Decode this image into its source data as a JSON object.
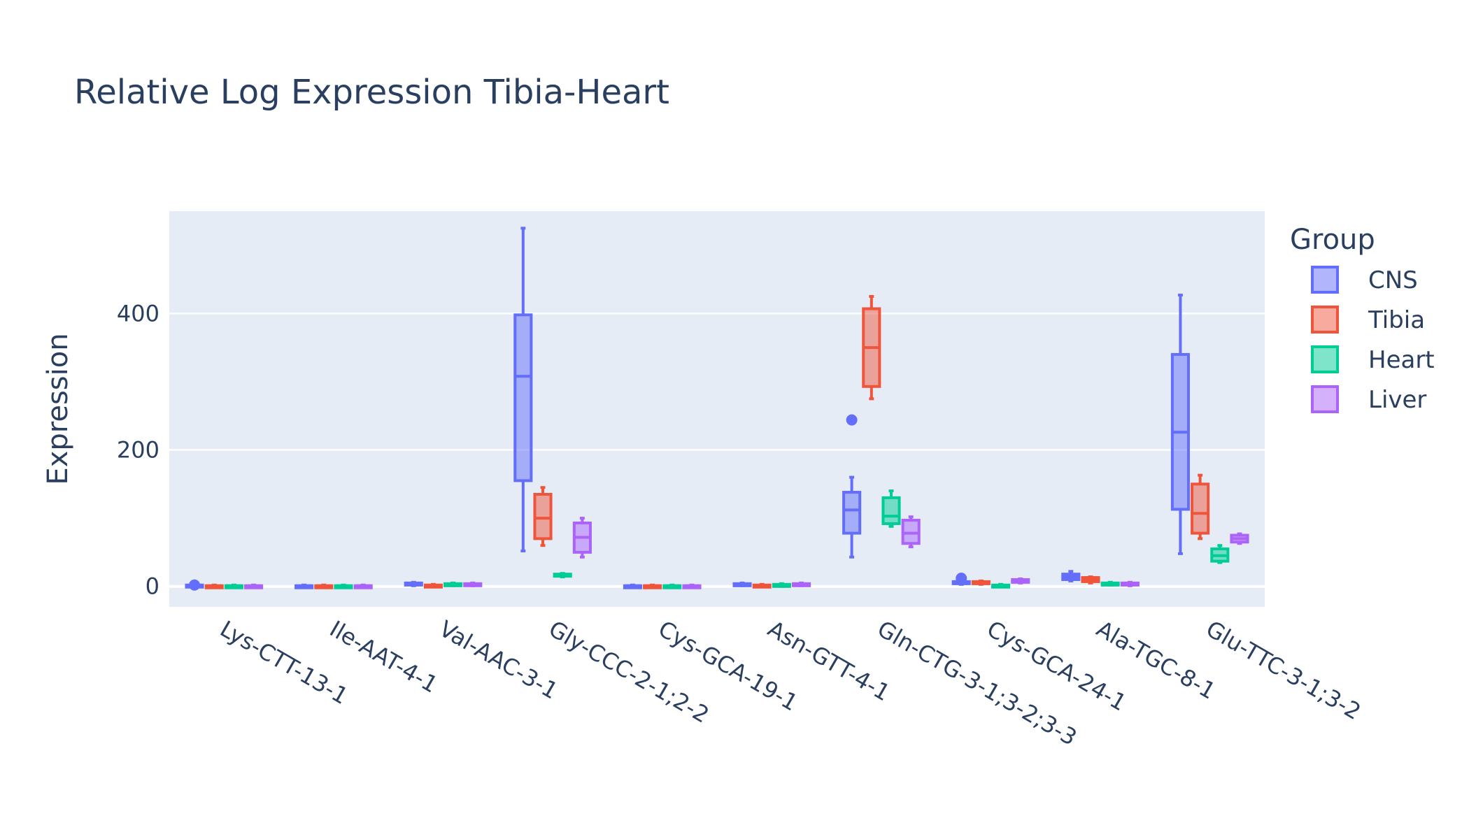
{
  "chart_data": {
    "type": "box",
    "title": "Relative Log Expression Tibia-Heart",
    "xlabel": "",
    "ylabel": "Expression",
    "ylim": [
      -30,
      550
    ],
    "yticks": [
      0,
      200,
      400
    ],
    "grid": true,
    "legend": {
      "title": "Group",
      "position": "right"
    },
    "categories": [
      "Lys-CTT-13-1",
      "Ile-AAT-4-1",
      "Val-AAC-3-1",
      "Gly-CCC-2-1;2-2",
      "Cys-GCA-19-1",
      "Asn-GTT-4-1",
      "Gln-CTG-3-1;3-2;3-3",
      "Cys-GCA-24-1",
      "Ala-TGC-8-1",
      "Glu-TTC-3-1;3-2"
    ],
    "series": [
      {
        "name": "CNS",
        "color": "#636efa",
        "fill": "rgba(99,110,250,0.5)",
        "boxes": [
          {
            "min": 0,
            "q1": 0,
            "median": 1,
            "q3": 2,
            "max": 3,
            "outliers": [
              2
            ]
          },
          {
            "min": 0,
            "q1": 0,
            "median": 1,
            "q3": 1,
            "max": 2,
            "outliers": []
          },
          {
            "min": 1,
            "q1": 2,
            "median": 3,
            "q3": 5,
            "max": 6,
            "outliers": []
          },
          {
            "min": 52,
            "q1": 155,
            "median": 308,
            "q3": 398,
            "max": 525,
            "outliers": []
          },
          {
            "min": 0,
            "q1": 0,
            "median": 1,
            "q3": 1,
            "max": 2,
            "outliers": []
          },
          {
            "min": 1,
            "q1": 1,
            "median": 2,
            "q3": 4,
            "max": 5,
            "outliers": []
          },
          {
            "min": 43,
            "q1": 78,
            "median": 112,
            "q3": 138,
            "max": 160,
            "outliers": [
              244
            ]
          },
          {
            "min": 3,
            "q1": 4,
            "median": 5,
            "q3": 7,
            "max": 8,
            "outliers": [
              12
            ]
          },
          {
            "min": 8,
            "q1": 10,
            "median": 14,
            "q3": 18,
            "max": 22,
            "outliers": []
          },
          {
            "min": 48,
            "q1": 113,
            "median": 226,
            "q3": 340,
            "max": 427,
            "outliers": []
          }
        ]
      },
      {
        "name": "Tibia",
        "color": "#ef553b",
        "fill": "rgba(239,85,59,0.5)",
        "boxes": [
          {
            "min": 0,
            "q1": 0,
            "median": 1,
            "q3": 1,
            "max": 2,
            "outliers": []
          },
          {
            "min": 0,
            "q1": 0,
            "median": 1,
            "q3": 1,
            "max": 2,
            "outliers": []
          },
          {
            "min": 0,
            "q1": 0,
            "median": 1,
            "q3": 2,
            "max": 3,
            "outliers": []
          },
          {
            "min": 60,
            "q1": 70,
            "median": 100,
            "q3": 135,
            "max": 145,
            "outliers": []
          },
          {
            "min": 0,
            "q1": 0,
            "median": 1,
            "q3": 1,
            "max": 2,
            "outliers": []
          },
          {
            "min": 0,
            "q1": 0,
            "median": 1,
            "q3": 2,
            "max": 3,
            "outliers": []
          },
          {
            "min": 275,
            "q1": 293,
            "median": 350,
            "q3": 407,
            "max": 425,
            "outliers": []
          },
          {
            "min": 3,
            "q1": 4,
            "median": 5,
            "q3": 7,
            "max": 8,
            "outliers": []
          },
          {
            "min": 5,
            "q1": 7,
            "median": 10,
            "q3": 13,
            "max": 14,
            "outliers": []
          },
          {
            "min": 70,
            "q1": 78,
            "median": 107,
            "q3": 150,
            "max": 163,
            "outliers": []
          }
        ]
      },
      {
        "name": "Heart",
        "color": "#00cc96",
        "fill": "rgba(0,204,150,0.5)",
        "boxes": [
          {
            "min": 0,
            "q1": 0,
            "median": 1,
            "q3": 1,
            "max": 2,
            "outliers": []
          },
          {
            "min": 0,
            "q1": 0,
            "median": 1,
            "q3": 1,
            "max": 2,
            "outliers": []
          },
          {
            "min": 1,
            "q1": 2,
            "median": 3,
            "q3": 4,
            "max": 5,
            "outliers": []
          },
          {
            "min": 14,
            "q1": 15,
            "median": 16,
            "q3": 18,
            "max": 19,
            "outliers": []
          },
          {
            "min": 0,
            "q1": 0,
            "median": 1,
            "q3": 1,
            "max": 2,
            "outliers": []
          },
          {
            "min": 0,
            "q1": 1,
            "median": 2,
            "q3": 3,
            "max": 4,
            "outliers": []
          },
          {
            "min": 88,
            "q1": 92,
            "median": 103,
            "q3": 130,
            "max": 140,
            "outliers": []
          },
          {
            "min": 0,
            "q1": 0,
            "median": 1,
            "q3": 2,
            "max": 3,
            "outliers": []
          },
          {
            "min": 2,
            "q1": 3,
            "median": 4,
            "q3": 5,
            "max": 6,
            "outliers": []
          },
          {
            "min": 35,
            "q1": 37,
            "median": 45,
            "q3": 55,
            "max": 60,
            "outliers": []
          }
        ]
      },
      {
        "name": "Liver",
        "color": "#ab63fa",
        "fill": "rgba(171,99,250,0.5)",
        "boxes": [
          {
            "min": 0,
            "q1": 0,
            "median": 1,
            "q3": 1,
            "max": 2,
            "outliers": []
          },
          {
            "min": 0,
            "q1": 0,
            "median": 1,
            "q3": 1,
            "max": 2,
            "outliers": []
          },
          {
            "min": 1,
            "q1": 2,
            "median": 3,
            "q3": 4,
            "max": 5,
            "outliers": []
          },
          {
            "min": 43,
            "q1": 50,
            "median": 72,
            "q3": 93,
            "max": 100,
            "outliers": []
          },
          {
            "min": 0,
            "q1": 0,
            "median": 1,
            "q3": 1,
            "max": 2,
            "outliers": []
          },
          {
            "min": 1,
            "q1": 2,
            "median": 3,
            "q3": 4,
            "max": 5,
            "outliers": []
          },
          {
            "min": 58,
            "q1": 63,
            "median": 78,
            "q3": 97,
            "max": 102,
            "outliers": []
          },
          {
            "min": 5,
            "q1": 6,
            "median": 8,
            "q3": 10,
            "max": 11,
            "outliers": []
          },
          {
            "min": 1,
            "q1": 2,
            "median": 3,
            "q3": 5,
            "max": 6,
            "outliers": []
          },
          {
            "min": 63,
            "q1": 65,
            "median": 70,
            "q3": 75,
            "max": 77,
            "outliers": []
          }
        ]
      }
    ]
  }
}
